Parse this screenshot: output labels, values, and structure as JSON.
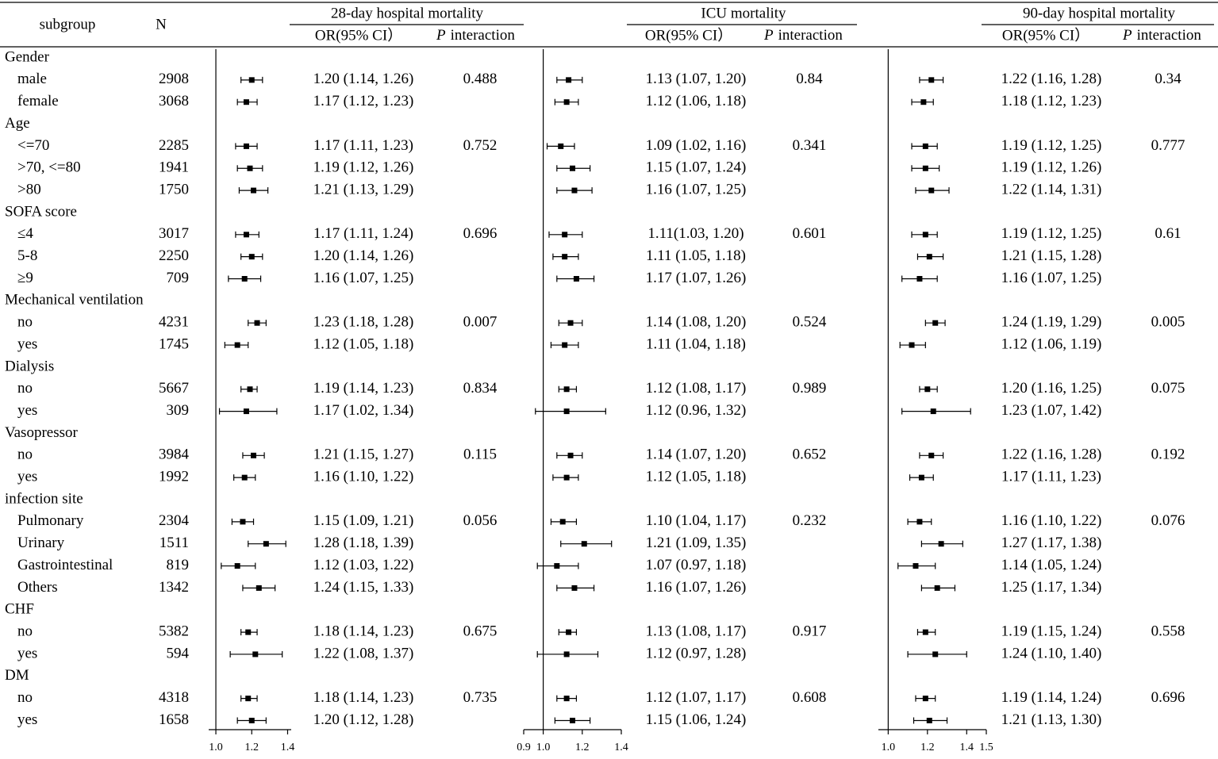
{
  "chart_data": {
    "type": "forest",
    "subgroup_header": "subgroup",
    "n_header": "N",
    "subgroups": [
      "Gender",
      "male",
      "female",
      "Age",
      "<=70",
      ">70, <=80",
      ">80",
      "SOFA score",
      "≤4",
      "5-8",
      "≥9",
      "Mechanical ventilation",
      "no",
      "yes",
      "Dialysis",
      "no",
      "yes",
      "Vasopressor",
      "no",
      "yes",
      "infection site",
      "Pulmonary",
      "Urinary",
      "Gastrointestinal",
      "Others",
      "CHF",
      "no",
      "yes",
      "DM",
      "no",
      "yes"
    ],
    "n": [
      null,
      2908,
      3068,
      null,
      2285,
      1941,
      1750,
      null,
      3017,
      2250,
      709,
      null,
      4231,
      1745,
      null,
      5667,
      309,
      null,
      3984,
      1992,
      null,
      2304,
      1511,
      819,
      1342,
      null,
      5382,
      594,
      null,
      4318,
      1658
    ],
    "panels": [
      {
        "title": "28-day hospital mortality",
        "or_header": "OR(95% CI）",
        "p_symbol": "P",
        "p_header": "interaction",
        "xlim": [
          0.96,
          1.42
        ],
        "xticks": [
          {
            "value": 1,
            "label": "1.0"
          },
          1.2,
          1.4
        ],
        "values": [
          null,
          1.2,
          1.17,
          null,
          1.17,
          1.19,
          1.21,
          null,
          1.17,
          1.2,
          1.16,
          null,
          1.23,
          1.12,
          null,
          1.19,
          1.17,
          null,
          1.21,
          1.16,
          null,
          1.15,
          1.28,
          1.12,
          1.24,
          null,
          1.18,
          1.22,
          null,
          1.18,
          1.2
        ],
        "lower": [
          null,
          1.14,
          1.12,
          null,
          1.11,
          1.12,
          1.13,
          null,
          1.11,
          1.14,
          1.07,
          null,
          1.18,
          1.05,
          null,
          1.14,
          1.02,
          null,
          1.15,
          1.1,
          null,
          1.09,
          1.18,
          1.03,
          1.15,
          null,
          1.14,
          1.08,
          null,
          1.14,
          1.12
        ],
        "upper": [
          null,
          1.26,
          1.23,
          null,
          1.23,
          1.26,
          1.29,
          null,
          1.24,
          1.26,
          1.25,
          null,
          1.28,
          1.18,
          null,
          1.23,
          1.34,
          null,
          1.27,
          1.22,
          null,
          1.21,
          1.39,
          1.22,
          1.33,
          null,
          1.23,
          1.37,
          null,
          1.23,
          1.28
        ],
        "value_labels": [
          null,
          "1.20 (1.14, 1.26)",
          "1.17 (1.12, 1.23)",
          null,
          "1.17 (1.11, 1.23)",
          "1.19 (1.12, 1.26)",
          "1.21 (1.13, 1.29)",
          null,
          "1.17 (1.11, 1.24)",
          "1.20 (1.14, 1.26)",
          "1.16 (1.07, 1.25)",
          null,
          "1.23 (1.18, 1.28)",
          "1.12 (1.05, 1.18)",
          null,
          "1.19 (1.14, 1.23)",
          "1.17 (1.02, 1.34)",
          null,
          "1.21 (1.15, 1.27)",
          "1.16 (1.10, 1.22)",
          null,
          "1.15 (1.09, 1.21)",
          "1.28 (1.18, 1.39)",
          "1.12 (1.03, 1.22)",
          "1.24 (1.15, 1.33)",
          null,
          "1.18 (1.14, 1.23)",
          "1.22 (1.08, 1.37)",
          null,
          "1.18 (1.14, 1.23)",
          "1.20 (1.12, 1.28)"
        ],
        "p_values": [
          null,
          0.488,
          null,
          null,
          0.752,
          null,
          null,
          null,
          0.696,
          null,
          null,
          null,
          0.007,
          null,
          null,
          0.834,
          null,
          null,
          0.115,
          null,
          null,
          0.056,
          null,
          null,
          null,
          null,
          0.675,
          null,
          null,
          0.735,
          null
        ]
      },
      {
        "title": "ICU mortality",
        "or_header": "OR(95% CI）",
        "p_symbol": "P",
        "p_header": "interaction",
        "xlim": [
          0.9,
          1.4
        ],
        "xticks": [
          0.9,
          {
            "value": 1,
            "label": "1.0"
          },
          1.2,
          1.4
        ],
        "values": [
          null,
          1.13,
          1.12,
          null,
          1.09,
          1.15,
          1.16,
          null,
          1.11,
          1.11,
          1.17,
          null,
          1.14,
          1.11,
          null,
          1.12,
          1.12,
          null,
          1.14,
          1.12,
          null,
          1.1,
          1.21,
          1.07,
          1.16,
          null,
          1.13,
          1.12,
          null,
          1.12,
          1.15
        ],
        "lower": [
          null,
          1.07,
          1.06,
          null,
          1.02,
          1.07,
          1.07,
          null,
          1.03,
          1.05,
          1.07,
          null,
          1.08,
          1.04,
          null,
          1.08,
          0.96,
          null,
          1.07,
          1.05,
          null,
          1.04,
          1.09,
          0.97,
          1.07,
          null,
          1.08,
          0.97,
          null,
          1.07,
          1.06
        ],
        "upper": [
          null,
          1.2,
          1.18,
          null,
          1.16,
          1.24,
          1.25,
          null,
          1.2,
          1.18,
          1.26,
          null,
          1.2,
          1.18,
          null,
          1.17,
          1.32,
          null,
          1.2,
          1.18,
          null,
          1.17,
          1.35,
          1.18,
          1.26,
          null,
          1.17,
          1.28,
          null,
          1.17,
          1.24
        ],
        "value_labels": [
          null,
          "1.13 (1.07, 1.20)",
          "1.12 (1.06, 1.18)",
          null,
          "1.09 (1.02, 1.16)",
          "1.15 (1.07, 1.24)",
          "1.16 (1.07, 1.25)",
          null,
          "1.11(1.03, 1.20)",
          "1.11 (1.05, 1.18)",
          "1.17 (1.07, 1.26)",
          null,
          "1.14 (1.08, 1.20)",
          "1.11 (1.04, 1.18)",
          null,
          "1.12 (1.08, 1.17)",
          "1.12 (0.96, 1.32)",
          null,
          "1.14 (1.07, 1.20)",
          "1.12 (1.05, 1.18)",
          null,
          "1.10 (1.04, 1.17)",
          "1.21 (1.09, 1.35)",
          "1.07 (0.97, 1.18)",
          "1.16 (1.07, 1.26)",
          null,
          "1.13 (1.08, 1.17)",
          "1.12 (0.97, 1.28)",
          null,
          "1.12 (1.07, 1.17)",
          "1.15 (1.06, 1.24)"
        ],
        "p_values": [
          null,
          0.84,
          null,
          null,
          0.341,
          null,
          null,
          null,
          0.601,
          null,
          null,
          null,
          0.524,
          null,
          null,
          0.989,
          null,
          null,
          0.652,
          null,
          null,
          0.232,
          null,
          null,
          null,
          null,
          0.917,
          null,
          null,
          0.608,
          null
        ]
      },
      {
        "title": "90-day hospital mortality",
        "or_header": "OR(95% CI）",
        "p_symbol": "P",
        "p_header": "interaction",
        "xlim": [
          0.95,
          1.5
        ],
        "xticks": [
          {
            "value": 1,
            "label": "1.0"
          },
          1.2,
          1.4,
          1.5
        ],
        "values": [
          null,
          1.22,
          1.18,
          null,
          1.19,
          1.19,
          1.22,
          null,
          1.19,
          1.21,
          1.16,
          null,
          1.24,
          1.12,
          null,
          1.2,
          1.23,
          null,
          1.22,
          1.17,
          null,
          1.16,
          1.27,
          1.14,
          1.25,
          null,
          1.19,
          1.24,
          null,
          1.19,
          1.21
        ],
        "lower": [
          null,
          1.16,
          1.12,
          null,
          1.12,
          1.12,
          1.14,
          null,
          1.12,
          1.15,
          1.07,
          null,
          1.19,
          1.06,
          null,
          1.16,
          1.07,
          null,
          1.16,
          1.11,
          null,
          1.1,
          1.17,
          1.05,
          1.17,
          null,
          1.15,
          1.1,
          null,
          1.14,
          1.13
        ],
        "upper": [
          null,
          1.28,
          1.23,
          null,
          1.25,
          1.26,
          1.31,
          null,
          1.25,
          1.28,
          1.25,
          null,
          1.29,
          1.19,
          null,
          1.25,
          1.42,
          null,
          1.28,
          1.23,
          null,
          1.22,
          1.38,
          1.24,
          1.34,
          null,
          1.24,
          1.4,
          null,
          1.24,
          1.3
        ],
        "value_labels": [
          null,
          "1.22 (1.16, 1.28)",
          "1.18 (1.12, 1.23)",
          null,
          "1.19 (1.12, 1.25)",
          "1.19 (1.12, 1.26)",
          "1.22 (1.14, 1.31)",
          null,
          "1.19 (1.12, 1.25)",
          "1.21 (1.15, 1.28)",
          "1.16 (1.07, 1.25)",
          null,
          "1.24 (1.19, 1.29)",
          "1.12 (1.06, 1.19)",
          null,
          "1.20 (1.16, 1.25)",
          "1.23 (1.07, 1.42)",
          null,
          "1.22 (1.16, 1.28)",
          "1.17 (1.11, 1.23)",
          null,
          "1.16 (1.10, 1.22)",
          "1.27 (1.17, 1.38)",
          "1.14 (1.05, 1.24)",
          "1.25 (1.17, 1.34)",
          null,
          "1.19 (1.15, 1.24)",
          "1.24 (1.10, 1.40)",
          null,
          "1.19 (1.14, 1.24)",
          "1.21 (1.13, 1.30)"
        ],
        "p_values": [
          null,
          0.34,
          null,
          null,
          0.777,
          null,
          null,
          null,
          0.61,
          null,
          null,
          null,
          0.005,
          null,
          null,
          0.075,
          null,
          null,
          0.192,
          null,
          null,
          0.076,
          null,
          null,
          null,
          null,
          0.558,
          null,
          null,
          0.696,
          null
        ]
      }
    ]
  }
}
